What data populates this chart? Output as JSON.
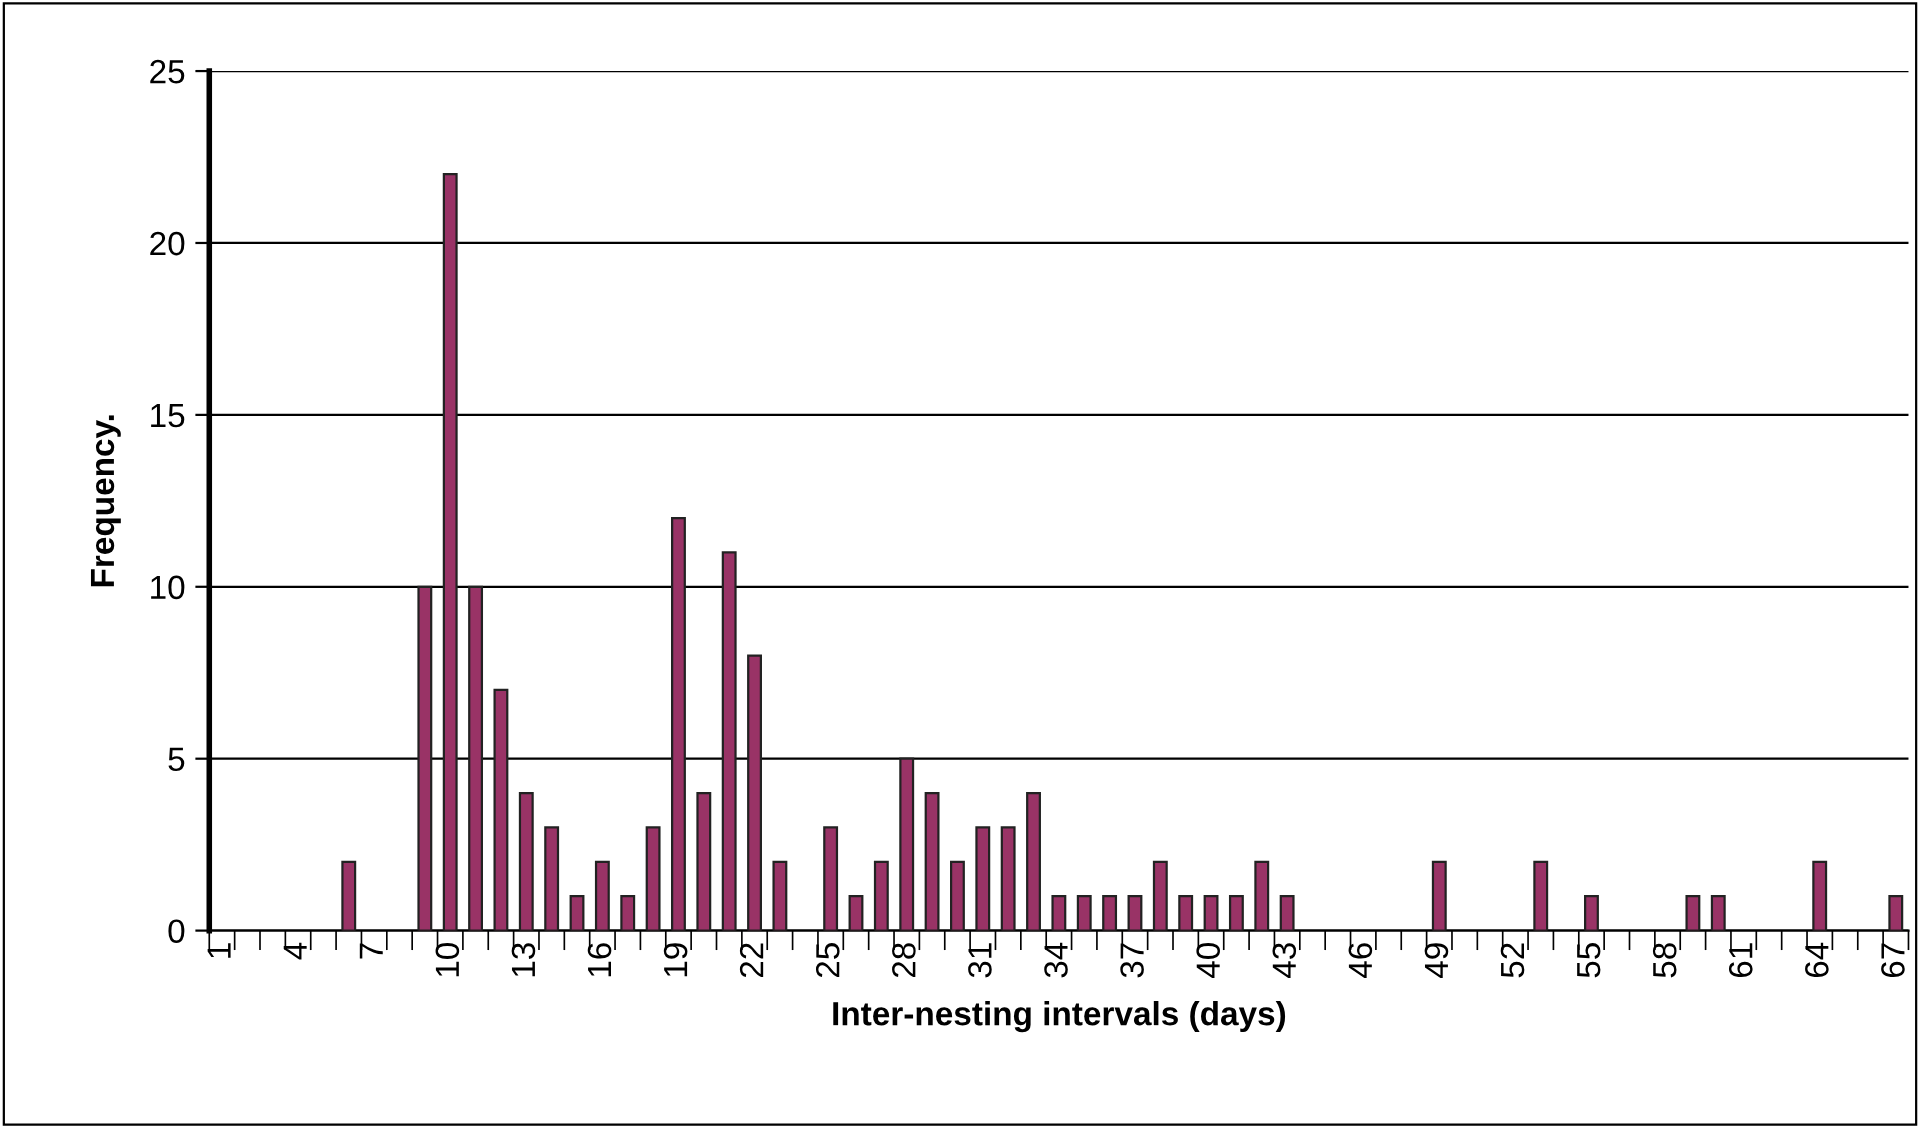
{
  "chart_data": {
    "type": "bar",
    "xlabel": "Inter-nesting intervals (days)",
    "ylabel": "Frequency.",
    "categories": [
      "1",
      null,
      null,
      "4",
      null,
      null,
      "7",
      null,
      null,
      "10",
      null,
      null,
      "13",
      null,
      null,
      "16",
      null,
      null,
      "19",
      null,
      null,
      "22",
      null,
      null,
      "25",
      null,
      null,
      "28",
      null,
      null,
      "31",
      null,
      null,
      "34",
      null,
      null,
      "37",
      null,
      null,
      "40",
      null,
      null,
      "43",
      null,
      null,
      "46",
      null,
      null,
      "49",
      null,
      null,
      "52",
      null,
      null,
      "55",
      null,
      null,
      "58",
      null,
      null,
      "61",
      null,
      null,
      "64",
      null,
      null,
      "67"
    ],
    "values": [
      0,
      0,
      0,
      0,
      0,
      2,
      0,
      0,
      10,
      22,
      10,
      7,
      4,
      3,
      1,
      2,
      1,
      3,
      12,
      4,
      11,
      8,
      2,
      0,
      3,
      1,
      2,
      5,
      4,
      2,
      3,
      3,
      4,
      1,
      1,
      1,
      1,
      2,
      1,
      1,
      1,
      2,
      1,
      0,
      0,
      0,
      0,
      0,
      2,
      0,
      0,
      0,
      2,
      0,
      1,
      0,
      0,
      0,
      1,
      1,
      0,
      0,
      0,
      2,
      0,
      0,
      1
    ],
    "color": "#993366",
    "ylim": [
      0,
      25
    ],
    "yticks": [
      0,
      5,
      10,
      15,
      20,
      25
    ],
    "grid": "y",
    "legend": false
  }
}
